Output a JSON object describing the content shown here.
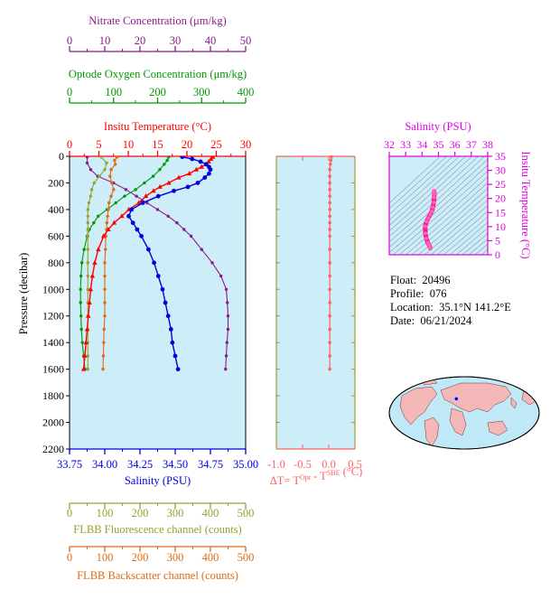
{
  "float_info": {
    "float_label": "Float:",
    "float_value": "20496",
    "profile_label": "Profile:",
    "profile_value": "076",
    "location_label": "Location:",
    "location_value": "35.1°N  141.2°E",
    "date_label": "Date:",
    "date_value": "06/21/2024"
  },
  "colors": {
    "plot_bg": "#cdeef8",
    "temperature": "#ff0000",
    "salinity": "#0000dd",
    "nitrate": "#8b1a8b",
    "oxygen": "#009900",
    "fluorescence": "#99a032",
    "backscatter": "#e06a10",
    "delta_t": "#ff6060",
    "ts_curve": "#ff1493",
    "axis_magenta": "#e000e0"
  },
  "chart_data": [
    {
      "id": "main-profile",
      "type": "line",
      "ylabel": "Pressure (decibar)",
      "ylim": [
        2200,
        0
      ],
      "yticks": [
        "0",
        "200",
        "400",
        "600",
        "800",
        "1000",
        "1200",
        "1400",
        "1600",
        "1800",
        "2000",
        "2200"
      ],
      "yticks_values": [
        0,
        200,
        400,
        600,
        800,
        1000,
        1200,
        1400,
        1600,
        1800,
        2000,
        2200
      ],
      "axes": {
        "nitrate": {
          "label": "Nitrate Concentration (μm/kg)",
          "range": [
            0,
            50
          ],
          "ticks": [
            "0",
            "10",
            "20",
            "30",
            "40",
            "50"
          ]
        },
        "oxygen": {
          "label": "Optode Oxygen Concentration (μm/kg)",
          "range": [
            0,
            400
          ],
          "ticks": [
            "0",
            "100",
            "200",
            "300",
            "400"
          ]
        },
        "temperature": {
          "label": "Insitu Temperature (°C)",
          "range": [
            0,
            30
          ],
          "ticks": [
            "0",
            "5",
            "10",
            "15",
            "20",
            "25",
            "30"
          ]
        },
        "salinity": {
          "label": "Salinity (PSU)",
          "range": [
            33.75,
            35.0
          ],
          "ticks": [
            "33.75",
            "34.00",
            "34.25",
            "34.50",
            "34.75",
            "35.00"
          ]
        },
        "fluorescence": {
          "label": "FLBB Fluorescence channel (counts)",
          "range": [
            0,
            500
          ],
          "ticks": [
            "0",
            "100",
            "200",
            "300",
            "400",
            "500"
          ]
        },
        "backscatter": {
          "label": "FLBB Backscatter channel (counts)",
          "range": [
            0,
            500
          ],
          "ticks": [
            "0",
            "100",
            "200",
            "300",
            "400",
            "500"
          ]
        }
      },
      "series": [
        {
          "key": "temperature",
          "pressure": [
            5,
            20,
            40,
            60,
            80,
            100,
            130,
            160,
            200,
            230,
            260,
            300,
            350,
            400,
            450,
            500,
            550,
            600,
            700,
            800,
            900,
            1000,
            1100,
            1200,
            1300,
            1400,
            1500,
            1600
          ],
          "values": [
            24.4,
            24.1,
            23.7,
            23.3,
            22.5,
            21.6,
            20.4,
            18.6,
            16.9,
            15.4,
            14.3,
            13.0,
            11.8,
            10.1,
            8.9,
            7.6,
            6.6,
            5.8,
            4.9,
            4.3,
            3.9,
            3.6,
            3.4,
            3.2,
            3.0,
            2.8,
            2.6,
            2.4
          ]
        },
        {
          "key": "salinity",
          "pressure": [
            5,
            20,
            40,
            60,
            80,
            100,
            130,
            160,
            200,
            230,
            260,
            300,
            350,
            400,
            450,
            500,
            550,
            600,
            700,
            800,
            900,
            1000,
            1100,
            1200,
            1300,
            1400,
            1500,
            1600
          ],
          "values": [
            34.55,
            34.62,
            34.68,
            34.72,
            34.74,
            34.75,
            34.74,
            34.71,
            34.66,
            34.59,
            34.49,
            34.38,
            34.27,
            34.19,
            34.17,
            34.2,
            34.23,
            34.26,
            34.31,
            34.35,
            34.38,
            34.41,
            34.43,
            34.45,
            34.47,
            34.48,
            34.5,
            34.52
          ]
        },
        {
          "key": "nitrate",
          "pressure": [
            5,
            50,
            100,
            150,
            200,
            250,
            300,
            350,
            400,
            450,
            500,
            550,
            600,
            700,
            800,
            900,
            1000,
            1100,
            1200,
            1300,
            1400,
            1500,
            1600
          ],
          "values": [
            5.0,
            5.0,
            6.0,
            8.0,
            12.5,
            16.0,
            19.0,
            22.0,
            25.0,
            28.0,
            30.5,
            32.5,
            34.5,
            37.5,
            40.5,
            43.0,
            44.5,
            44.8,
            45.0,
            45.0,
            44.7,
            44.5,
            44.3
          ]
        },
        {
          "key": "oxygen",
          "pressure": [
            5,
            30,
            60,
            100,
            150,
            200,
            250,
            300,
            350,
            400,
            450,
            500,
            550,
            600,
            700,
            800,
            900,
            1000,
            1100,
            1200,
            1300,
            1400,
            1500,
            1600
          ],
          "values": [
            225,
            222,
            215,
            205,
            190,
            170,
            150,
            125,
            105,
            85,
            65,
            55,
            45,
            40,
            33,
            28,
            26,
            25,
            25,
            26,
            27,
            29,
            32,
            35
          ]
        },
        {
          "key": "fluorescence",
          "pressure": [
            5,
            50,
            100,
            150,
            200,
            250,
            300,
            350,
            400,
            450,
            500,
            550,
            600,
            700,
            800,
            900,
            1000,
            1100,
            1200,
            1300,
            1400,
            1500,
            1600
          ],
          "values": [
            90,
            105,
            100,
            85,
            70,
            63,
            60,
            55,
            52,
            52,
            52,
            52,
            52,
            52,
            52,
            52,
            52,
            52,
            52,
            52,
            52,
            52,
            52
          ]
        },
        {
          "key": "backscatter",
          "pressure": [
            5,
            30,
            60,
            100,
            150,
            200,
            250,
            300,
            350,
            400,
            450,
            500,
            550,
            600,
            700,
            800,
            900,
            1000,
            1100,
            1200,
            1300,
            1400,
            1500,
            1600
          ],
          "values": [
            135,
            128,
            130,
            118,
            115,
            120,
            125,
            118,
            112,
            110,
            108,
            106,
            105,
            103,
            102,
            100,
            100,
            100,
            100,
            100,
            98,
            97,
            96,
            95
          ]
        }
      ]
    },
    {
      "id": "delta-t",
      "type": "line",
      "xlabel": "ΔT= T",
      "xlabel_sup1": "Opt",
      "xlabel_mid": " - T",
      "xlabel_sup2": "SBE",
      "xlabel_unit": " (°C)",
      "xlim": [
        -1.0,
        0.5
      ],
      "xticks": [
        "-1.0",
        "-0.5",
        "0.0",
        "0.5"
      ],
      "xticks_values": [
        -1.0,
        -0.5,
        0.0,
        0.5
      ],
      "pressure": [
        5,
        30,
        60,
        100,
        150,
        200,
        250,
        300,
        350,
        400,
        450,
        500,
        550,
        600,
        700,
        800,
        900,
        1000,
        1100,
        1200,
        1300,
        1400,
        1500,
        1600
      ],
      "values": [
        0.05,
        0.04,
        0.03,
        0.02,
        0.02,
        0.02,
        0.02,
        0.02,
        0.02,
        0.02,
        0.02,
        0.02,
        0.02,
        0.02,
        0.02,
        0.02,
        0.02,
        0.02,
        0.02,
        0.02,
        0.02,
        0.02,
        0.02,
        0.02
      ]
    },
    {
      "id": "ts-diagram",
      "type": "line",
      "xlabel": "Salinity (PSU)",
      "ylabel": "Insitu Temperature (°C)",
      "xlim": [
        32,
        38
      ],
      "ylim": [
        0,
        35
      ],
      "xticks": [
        "32",
        "33",
        "34",
        "35",
        "36",
        "37",
        "38"
      ],
      "xticks_values": [
        32,
        33,
        34,
        35,
        36,
        37,
        38
      ],
      "yticks": [
        "0",
        "5",
        "10",
        "15",
        "20",
        "25",
        "30",
        "35"
      ],
      "yticks_values": [
        0,
        5,
        10,
        15,
        20,
        25,
        30,
        35
      ],
      "salinity": [
        34.5,
        34.48,
        34.45,
        34.41,
        34.35,
        34.26,
        34.2,
        34.19,
        34.27,
        34.38,
        34.49,
        34.59,
        34.66,
        34.71,
        34.74,
        34.75,
        34.74
      ],
      "temperature": [
        2.4,
        2.8,
        3.2,
        3.6,
        4.3,
        5.8,
        7.6,
        10.1,
        11.8,
        13.0,
        14.3,
        15.4,
        16.9,
        18.6,
        20.4,
        21.6,
        22.5
      ]
    }
  ]
}
